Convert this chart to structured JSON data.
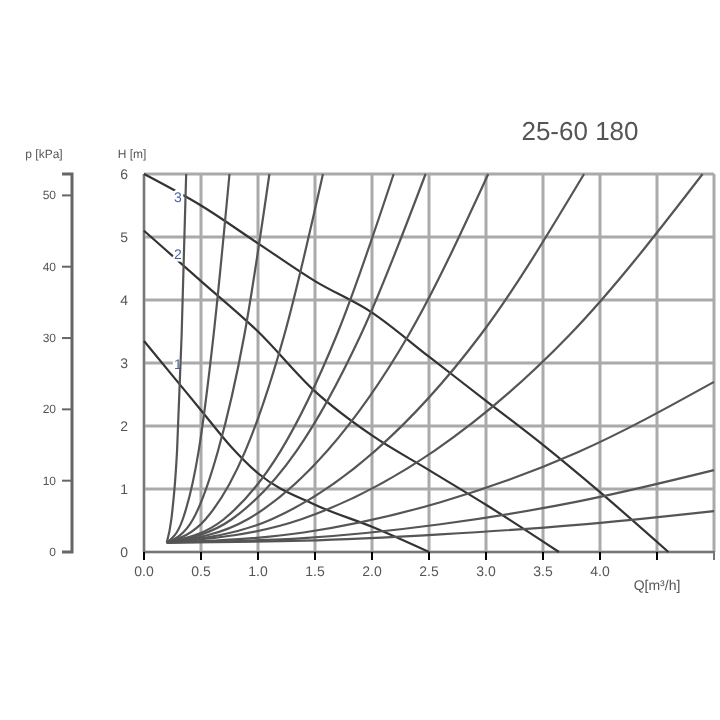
{
  "chart_data": {
    "type": "line",
    "title": "25-60 180",
    "xlabel": "Q[m³/h]",
    "ylabel": "H [m]",
    "y2label": "p [kPa]",
    "xlim": [
      0,
      5
    ],
    "xticks": [
      {
        "value": 0,
        "label": "0.0"
      },
      {
        "value": 0.5,
        "label": "0.5"
      },
      {
        "value": 1,
        "label": "1.0"
      },
      {
        "value": 1.5,
        "label": "1.5"
      },
      {
        "value": 2,
        "label": "2.0"
      },
      {
        "value": 2.5,
        "label": "2.5"
      },
      {
        "value": 3,
        "label": "3.0"
      },
      {
        "value": 3.5,
        "label": "3.5"
      },
      {
        "value": 4,
        "label": "4.0"
      },
      {
        "value": 4.5,
        "label": null
      }
    ],
    "ylim": [
      0,
      6
    ],
    "yticks": [
      0,
      1,
      2,
      3,
      4,
      5,
      6
    ],
    "y2lim": [
      0,
      53
    ],
    "y2ticks": [
      0,
      10,
      20,
      30,
      40,
      50
    ],
    "grid": true,
    "legend": false,
    "marker": "none",
    "line_style": "solid",
    "series": [
      {
        "name": "3",
        "color": "#333333",
        "x": [
          0,
          0.5,
          1,
          1.5,
          2,
          2.5,
          3,
          3.5,
          4,
          4.6
        ],
        "values": [
          6.0,
          5.5,
          4.9,
          4.3,
          3.8,
          3.1,
          2.4,
          1.7,
          0.95,
          0
        ]
      },
      {
        "name": "2",
        "color": "#333333",
        "x": [
          0,
          0.5,
          1,
          1.5,
          2,
          2.5,
          3,
          3.64
        ],
        "values": [
          5.1,
          4.3,
          3.5,
          2.55,
          1.85,
          1.3,
          0.75,
          0
        ]
      },
      {
        "name": "1",
        "color": "#333333",
        "x": [
          0,
          0.25,
          0.5,
          0.75,
          1,
          1.5,
          2,
          2.5
        ],
        "values": [
          3.35,
          2.8,
          2.25,
          1.7,
          1.25,
          0.75,
          0.4,
          0
        ]
      },
      {
        "color": "#555555",
        "x": [
          0.2,
          0.24,
          0.29,
          0.33,
          0.37
        ],
        "values": [
          0.15,
          0.52,
          1.61,
          3.44,
          6
        ]
      },
      {
        "color": "#555555",
        "x": [
          0.2,
          0.34,
          0.48,
          0.61,
          0.75
        ],
        "values": [
          0.15,
          0.52,
          1.61,
          3.44,
          6
        ]
      },
      {
        "color": "#555555",
        "x": [
          0.2,
          0.43,
          0.65,
          0.88,
          1.1
        ],
        "values": [
          0.15,
          0.52,
          1.61,
          3.44,
          6
        ]
      },
      {
        "color": "#555555",
        "x": [
          0.2,
          0.54,
          0.89,
          1.23,
          1.57
        ],
        "values": [
          0.15,
          0.52,
          1.61,
          3.44,
          6
        ]
      },
      {
        "color": "#555555",
        "x": [
          0.2,
          0.7,
          1.2,
          1.69,
          2.19
        ],
        "values": [
          0.15,
          0.52,
          1.61,
          3.44,
          6
        ]
      },
      {
        "color": "#555555",
        "x": [
          0.2,
          0.77,
          1.34,
          1.9,
          2.47
        ],
        "values": [
          0.15,
          0.52,
          1.61,
          3.44,
          6
        ]
      },
      {
        "color": "#555555",
        "x": [
          0.2,
          0.91,
          1.61,
          2.32,
          3.02
        ],
        "values": [
          0.15,
          0.52,
          1.61,
          3.44,
          6
        ]
      },
      {
        "color": "#555555",
        "x": [
          0.2,
          1.12,
          2.03,
          2.95,
          3.86
        ],
        "values": [
          0.15,
          0.52,
          1.61,
          3.44,
          6
        ]
      },
      {
        "color": "#555555",
        "x": [
          0.2,
          1.38,
          2.55,
          3.73,
          4.9
        ],
        "values": [
          0.15,
          0.52,
          1.61,
          3.44,
          6
        ]
      },
      {
        "color": "#555555",
        "x": [
          0.2,
          1.4,
          2.6,
          3.8,
          5
        ],
        "values": [
          0.15,
          0.31,
          0.79,
          1.58,
          2.7
        ]
      },
      {
        "color": "#555555",
        "x": [
          0.2,
          1.4,
          2.6,
          3.8,
          5
        ],
        "values": [
          0.15,
          0.22,
          0.44,
          0.8,
          1.3
        ]
      },
      {
        "color": "#555555",
        "x": [
          0.2,
          1.4,
          2.6,
          3.8,
          5
        ],
        "values": [
          0.15,
          0.18,
          0.28,
          0.43,
          0.65
        ]
      }
    ]
  }
}
